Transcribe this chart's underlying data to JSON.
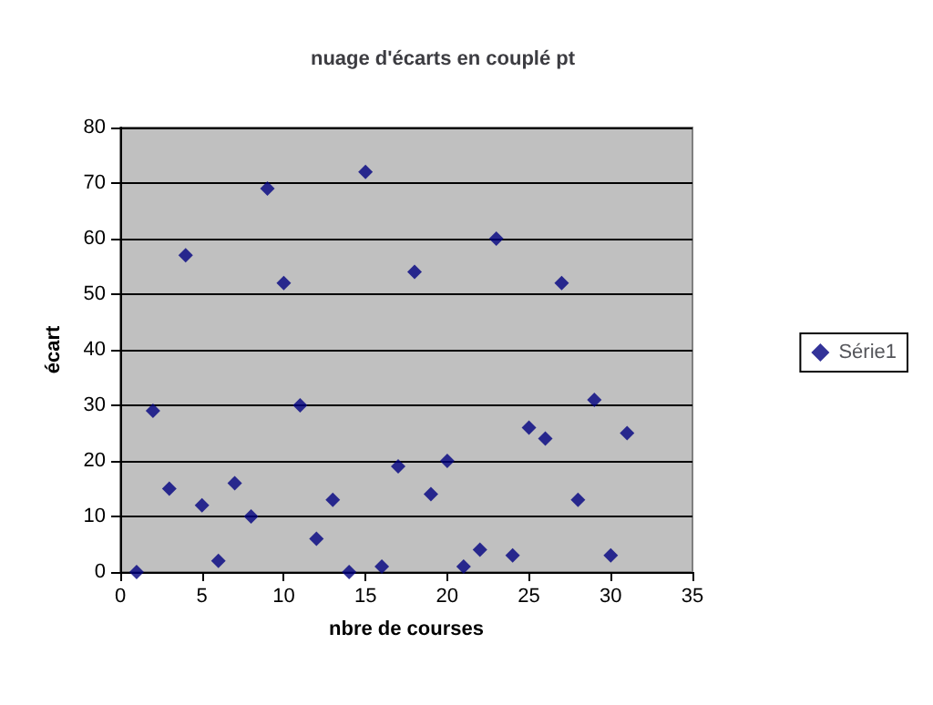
{
  "chart_data": {
    "type": "scatter",
    "title": "nuage d'écarts en couplé pt",
    "xlabel": "nbre de courses",
    "ylabel": "écart",
    "series": [
      {
        "name": "Série1",
        "color": "#000080",
        "x": [
          1,
          2,
          3,
          4,
          5,
          6,
          7,
          8,
          9,
          10,
          11,
          12,
          13,
          14,
          15,
          16,
          17,
          18,
          19,
          20,
          21,
          22,
          23,
          24,
          25,
          26,
          27,
          28,
          29,
          30,
          31
        ],
        "values": [
          0,
          29,
          15,
          57,
          12,
          2,
          16,
          10,
          69,
          52,
          30,
          6,
          13,
          0,
          72,
          1,
          19,
          54,
          14,
          20,
          1,
          4,
          60,
          3,
          26,
          24,
          52,
          13,
          31,
          3,
          25
        ]
      }
    ],
    "xlim": [
      0,
      35
    ],
    "xticks": [
      0,
      5,
      10,
      15,
      20,
      25,
      30,
      35
    ],
    "ylim": [
      0,
      80
    ],
    "yticks": [
      0,
      10,
      20,
      30,
      40,
      50,
      60,
      70,
      80
    ],
    "grid": "y",
    "legend": "right",
    "marker": "diamond"
  }
}
